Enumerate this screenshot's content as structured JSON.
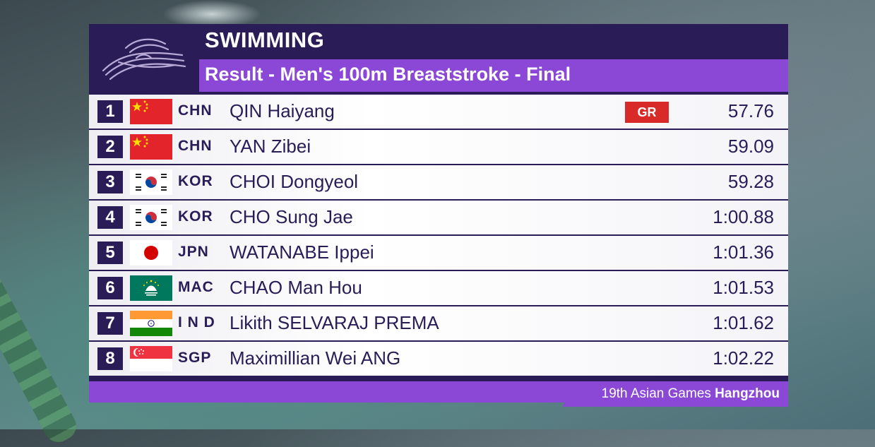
{
  "header": {
    "sport": "SWIMMING",
    "event": "Result - Men's 100m Breaststroke - Final"
  },
  "results": [
    {
      "rank": "1",
      "noc": "CHN",
      "name": "QIN Haiyang",
      "badge": "GR",
      "time": "57.76",
      "flag": "china-flag-icon"
    },
    {
      "rank": "2",
      "noc": "CHN",
      "name": "YAN Zibei",
      "badge": "",
      "time": "59.09",
      "flag": "china-flag-icon"
    },
    {
      "rank": "3",
      "noc": "KOR",
      "name": "CHOI Dongyeol",
      "badge": "",
      "time": "59.28",
      "flag": "korea-flag-icon"
    },
    {
      "rank": "4",
      "noc": "KOR",
      "name": "CHO Sung Jae",
      "badge": "",
      "time": "1:00.88",
      "flag": "korea-flag-icon"
    },
    {
      "rank": "5",
      "noc": "JPN",
      "name": "WATANABE Ippei",
      "badge": "",
      "time": "1:01.36",
      "flag": "japan-flag-icon"
    },
    {
      "rank": "6",
      "noc": "MAC",
      "name": "CHAO Man Hou",
      "badge": "",
      "time": "1:01.53",
      "flag": "macau-flag-icon"
    },
    {
      "rank": "7",
      "noc": "I N D",
      "name": "Likith SELVARAJ PREMA",
      "badge": "",
      "time": "1:01.62",
      "flag": "india-flag-icon"
    },
    {
      "rank": "8",
      "noc": "SGP",
      "name": "Maximillian Wei ANG",
      "badge": "",
      "time": "1:02.22",
      "flag": "singapore-flag-icon"
    }
  ],
  "footer": {
    "edition": "19th Asian Games",
    "city": "Hangzhou"
  },
  "colors": {
    "header_dark": "#2a1d57",
    "accent_purple": "#8b47d6",
    "record_red": "#d92a2a"
  }
}
